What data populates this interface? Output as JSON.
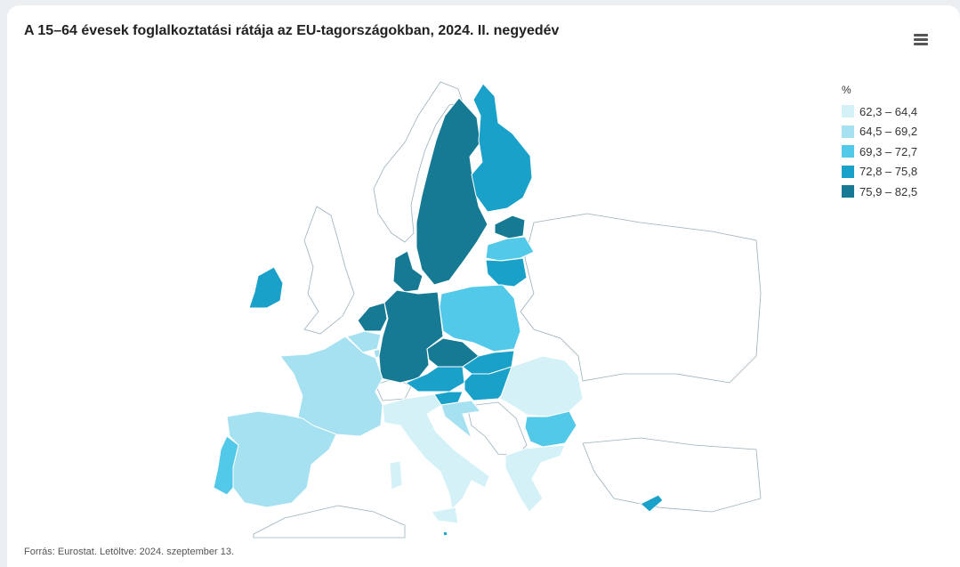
{
  "title": "A 15–64 évesek foglalkoztatási rátája az EU-tagországokban, 2024. II. negyedév",
  "menu_icon": "hamburger-menu-icon",
  "legend": {
    "unit": "%",
    "classes": [
      {
        "label": "62,3 – 64,4",
        "color": "#d4f1f8"
      },
      {
        "label": "64,5 – 69,2",
        "color": "#a6e1f2"
      },
      {
        "label": "69,3 – 72,7",
        "color": "#52c9e8"
      },
      {
        "label": "72,8 – 75,8",
        "color": "#1aa1c9"
      },
      {
        "label": "75,9 – 82,5",
        "color": "#167a95"
      }
    ]
  },
  "map_data": {
    "countries": [
      {
        "name": "Sweden",
        "class": 4
      },
      {
        "name": "Finland",
        "class": 3
      },
      {
        "name": "Estonia",
        "class": 4
      },
      {
        "name": "Latvia",
        "class": 2
      },
      {
        "name": "Lithuania",
        "class": 3
      },
      {
        "name": "Denmark",
        "class": 4
      },
      {
        "name": "Netherlands",
        "class": 4
      },
      {
        "name": "Germany",
        "class": 4
      },
      {
        "name": "Czechia",
        "class": 4
      },
      {
        "name": "Poland",
        "class": 2
      },
      {
        "name": "Slovakia",
        "class": 3
      },
      {
        "name": "Hungary",
        "class": 3
      },
      {
        "name": "Austria",
        "class": 3
      },
      {
        "name": "Slovenia",
        "class": 3
      },
      {
        "name": "Croatia",
        "class": 1
      },
      {
        "name": "Ireland",
        "class": 3
      },
      {
        "name": "Belgium",
        "class": 1
      },
      {
        "name": "Luxembourg",
        "class": 1
      },
      {
        "name": "France",
        "class": 1
      },
      {
        "name": "Spain",
        "class": 1
      },
      {
        "name": "Portugal",
        "class": 2
      },
      {
        "name": "Italy",
        "class": 0
      },
      {
        "name": "Greece",
        "class": 0
      },
      {
        "name": "Bulgaria",
        "class": 2
      },
      {
        "name": "Romania",
        "class": 0
      },
      {
        "name": "Cyprus",
        "class": 3
      },
      {
        "name": "Malta",
        "class": 3
      }
    ]
  },
  "source": "Forrás: Eurostat. Letöltve: 2024. szeptember 13."
}
